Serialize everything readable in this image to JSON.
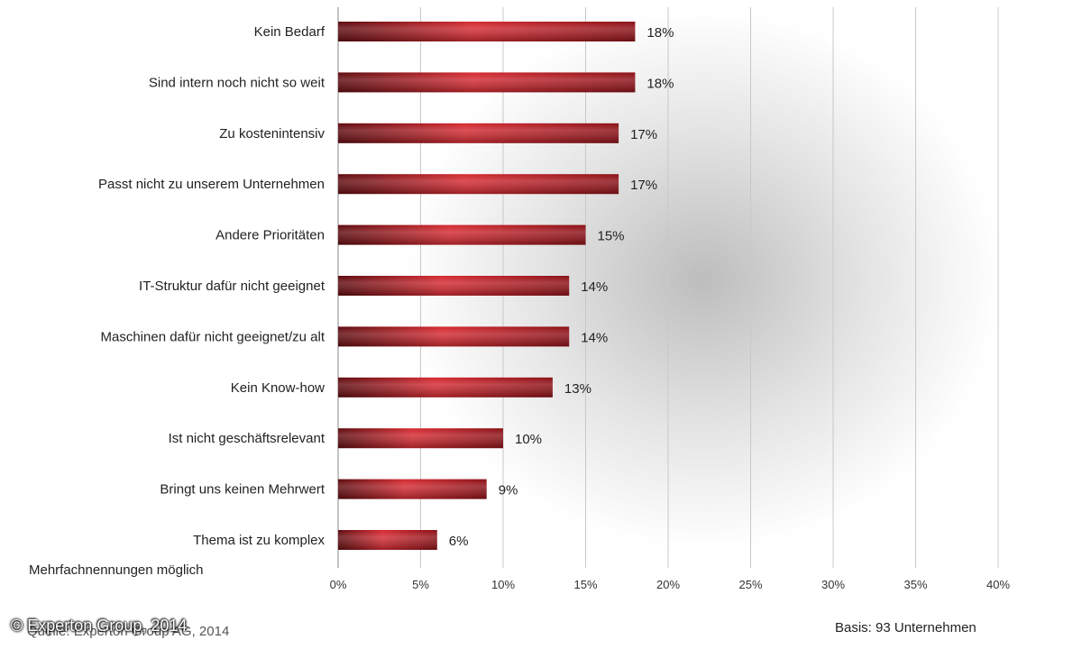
{
  "chart_data": {
    "type": "bar",
    "orientation": "horizontal",
    "categories": [
      "Kein Bedarf",
      "Sind intern noch nicht so weit",
      "Zu kostenintensiv",
      "Passt nicht zu unserem Unternehmen",
      "Andere Prioritäten",
      "IT-Struktur dafür nicht geeignet",
      "Maschinen dafür nicht geeignet/zu alt",
      "Kein Know-how",
      "Ist nicht geschäftsrelevant",
      "Bringt uns keinen Mehrwert",
      "Thema ist  zu komplex"
    ],
    "values": [
      18,
      18,
      17,
      17,
      15,
      14,
      14,
      13,
      10,
      9,
      6
    ],
    "value_labels": [
      "18%",
      "18%",
      "17%",
      "17%",
      "15%",
      "14%",
      "14%",
      "13%",
      "10%",
      "9%",
      "6%"
    ],
    "xlim": [
      0,
      40
    ],
    "ticks": [
      0,
      5,
      10,
      15,
      20,
      25,
      30,
      35,
      40
    ],
    "tick_labels": [
      "0%",
      "5%",
      "10%",
      "15%",
      "20%",
      "25%",
      "30%",
      "35%",
      "40%"
    ],
    "grid": true,
    "bar_color": "#b2141e",
    "bar_color_dark": "#5e0a0e",
    "title": "",
    "xlabel": "",
    "ylabel": ""
  },
  "notes": {
    "multiple": "Mehrfachnennungen möglich",
    "basis": "Basis: 93 Unternehmen",
    "source": "Quelle: Experton Group AG, 2014",
    "copyright": "© Experton Group, 2014"
  }
}
